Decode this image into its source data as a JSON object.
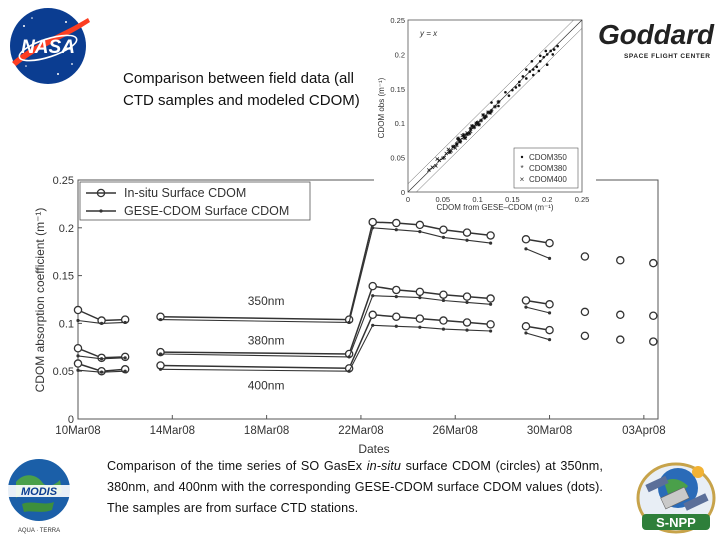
{
  "logos": {
    "nasa": "NASA",
    "goddard_line1": "Goddard",
    "goddard_line2": "SPACE FLIGHT CENTER",
    "modis": "MODIS",
    "modis_ring": "AQUA · TERRA",
    "snpp": "S-NPP"
  },
  "captions": {
    "top": "Comparison between field data (all CTD samples and modeled CDOM)",
    "bottom_pre": "Comparison of the time series of SO GasEx ",
    "bottom_em": "in-situ",
    "bottom_post": " surface CDOM (circles) at 350nm, 380nm, and 400nm with the corresponding GESE-CDOM surface CDOM values (dots). The samples are from surface CTD stations."
  },
  "chart_data": [
    {
      "type": "line",
      "title": "",
      "xlabel": "Dates",
      "ylabel": "CDOM absorption coefficient (m⁻¹)",
      "xlim": [
        0,
        24.6
      ],
      "ylim": [
        0,
        0.25
      ],
      "x_ticks": [
        0,
        4,
        8,
        12,
        16,
        20,
        24
      ],
      "x_tick_labels": [
        "10Mar08",
        "14Mar08",
        "18Mar08",
        "22Mar08",
        "26Mar08",
        "30Mar08",
        "03Apr08"
      ],
      "y_ticks": [
        0,
        0.05,
        0.1,
        0.15,
        0.2,
        0.25
      ],
      "y_tick_labels": [
        "0",
        "0.05",
        "0.1",
        "0.15",
        "0.2",
        "0.25"
      ],
      "legend": {
        "position": "top-left",
        "entries": [
          "In-situ Surface CDOM",
          "GESE-CDOM Surface CDOM"
        ]
      },
      "annotations": [
        {
          "text": "350nm",
          "x": 7.2,
          "y": 0.119
        },
        {
          "text": "380nm",
          "x": 7.2,
          "y": 0.078
        },
        {
          "text": "400nm",
          "x": 7.2,
          "y": 0.031
        }
      ],
      "series": [
        {
          "name": "In-situ 350nm",
          "kind": "insitu",
          "x": [
            0,
            1,
            2,
            3.5,
            11.5,
            12.5,
            13.5,
            14.5,
            15.5,
            16.5,
            17.5,
            19,
            20,
            21.5,
            23,
            24.4
          ],
          "y": [
            0.114,
            0.103,
            0.104,
            0.107,
            0.104,
            0.206,
            0.205,
            0.203,
            0.198,
            0.195,
            0.192,
            0.188,
            0.184,
            0.17,
            0.166,
            0.163
          ]
        },
        {
          "name": "In-situ 380nm",
          "kind": "insitu",
          "x": [
            0,
            1,
            2,
            3.5,
            11.5,
            12.5,
            13.5,
            14.5,
            15.5,
            16.5,
            17.5,
            19,
            20,
            21.5,
            23,
            24.4
          ],
          "y": [
            0.074,
            0.064,
            0.065,
            0.07,
            0.068,
            0.139,
            0.135,
            0.133,
            0.13,
            0.128,
            0.126,
            0.124,
            0.12,
            0.112,
            0.109,
            0.108
          ]
        },
        {
          "name": "In-situ 400nm",
          "kind": "insitu",
          "x": [
            0,
            1,
            2,
            3.5,
            11.5,
            12.5,
            13.5,
            14.5,
            15.5,
            16.5,
            17.5,
            19,
            20,
            21.5,
            23,
            24.4
          ],
          "y": [
            0.058,
            0.05,
            0.052,
            0.056,
            0.053,
            0.109,
            0.107,
            0.105,
            0.103,
            0.101,
            0.099,
            0.097,
            0.093,
            0.087,
            0.083,
            0.081
          ]
        },
        {
          "name": "GESE 350nm",
          "kind": "gese",
          "x": [
            0,
            1,
            2,
            3.5,
            11.5,
            12.5,
            13.5,
            14.5,
            15.5,
            16.5,
            17.5,
            19,
            20
          ],
          "y": [
            0.103,
            0.1,
            0.101,
            0.104,
            0.101,
            0.2,
            0.198,
            0.196,
            0.19,
            0.187,
            0.184,
            0.178,
            0.168
          ]
        },
        {
          "name": "GESE 380nm",
          "kind": "gese",
          "x": [
            0,
            1,
            2,
            3.5,
            11.5,
            12.5,
            13.5,
            14.5,
            15.5,
            16.5,
            17.5,
            19,
            20
          ],
          "y": [
            0.066,
            0.063,
            0.064,
            0.068,
            0.065,
            0.129,
            0.128,
            0.127,
            0.124,
            0.122,
            0.12,
            0.117,
            0.111
          ]
        },
        {
          "name": "GESE 400nm",
          "kind": "gese",
          "x": [
            0,
            1,
            2,
            3.5,
            11.5,
            12.5,
            13.5,
            14.5,
            15.5,
            16.5,
            17.5,
            19,
            20
          ],
          "y": [
            0.051,
            0.049,
            0.05,
            0.052,
            0.05,
            0.098,
            0.097,
            0.096,
            0.094,
            0.093,
            0.092,
            0.09,
            0.083
          ]
        }
      ]
    },
    {
      "type": "scatter",
      "title": "",
      "xlabel": "CDOM from GESE–CDOM (m⁻¹)",
      "ylabel": "CDOM obs (m⁻¹)",
      "xlim": [
        0,
        0.25
      ],
      "ylim": [
        0,
        0.25
      ],
      "x_ticks": [
        0,
        0.05,
        0.1,
        0.15,
        0.2,
        0.25
      ],
      "x_tick_labels": [
        "0",
        "0.05",
        "0.1",
        "0.15",
        "0.2",
        "0.25"
      ],
      "y_ticks": [
        0,
        0.05,
        0.1,
        0.15,
        0.2,
        0.25
      ],
      "y_tick_labels": [
        "0",
        "0.05",
        "0.1",
        "0.15",
        "0.2",
        "0.25"
      ],
      "reference_line_label": "y = x",
      "legend": {
        "position": "bottom-right",
        "entries": [
          "CDOM350",
          "CDOM380",
          "CDOM400"
        ]
      },
      "series": [
        {
          "name": "CDOM350",
          "marker": "dot",
          "x": [
            0.15,
            0.155,
            0.16,
            0.165,
            0.17,
            0.175,
            0.18,
            0.185,
            0.19,
            0.195,
            0.2,
            0.205,
            0.21,
            0.215,
            0.12,
            0.13,
            0.14,
            0.145,
            0.178,
            0.188,
            0.198,
            0.208,
            0.2,
            0.19,
            0.18,
            0.17,
            0.16
          ],
          "y": [
            0.148,
            0.152,
            0.16,
            0.168,
            0.165,
            0.175,
            0.178,
            0.182,
            0.19,
            0.196,
            0.2,
            0.205,
            0.207,
            0.212,
            0.13,
            0.125,
            0.145,
            0.14,
            0.19,
            0.176,
            0.205,
            0.2,
            0.185,
            0.198,
            0.17,
            0.178,
            0.155
          ]
        },
        {
          "name": "CDOM380",
          "marker": "star",
          "x": [
            0.06,
            0.065,
            0.07,
            0.075,
            0.08,
            0.085,
            0.09,
            0.095,
            0.1,
            0.105,
            0.11,
            0.115,
            0.12,
            0.125,
            0.13,
            0.072,
            0.088,
            0.098,
            0.108,
            0.118,
            0.082,
            0.092,
            0.102,
            0.112
          ],
          "y": [
            0.058,
            0.066,
            0.07,
            0.073,
            0.083,
            0.084,
            0.092,
            0.094,
            0.101,
            0.104,
            0.108,
            0.116,
            0.118,
            0.124,
            0.131,
            0.078,
            0.085,
            0.1,
            0.112,
            0.115,
            0.079,
            0.096,
            0.098,
            0.11
          ]
        },
        {
          "name": "CDOM400",
          "marker": "x",
          "x": [
            0.03,
            0.035,
            0.04,
            0.045,
            0.05,
            0.055,
            0.06,
            0.065,
            0.07,
            0.075,
            0.08,
            0.085,
            0.09,
            0.095,
            0.1,
            0.042,
            0.052,
            0.062,
            0.072,
            0.082,
            0.058,
            0.068,
            0.078
          ],
          "y": [
            0.032,
            0.036,
            0.038,
            0.046,
            0.049,
            0.056,
            0.058,
            0.066,
            0.068,
            0.076,
            0.079,
            0.086,
            0.088,
            0.096,
            0.098,
            0.048,
            0.05,
            0.06,
            0.075,
            0.078,
            0.062,
            0.064,
            0.082
          ]
        }
      ]
    }
  ]
}
